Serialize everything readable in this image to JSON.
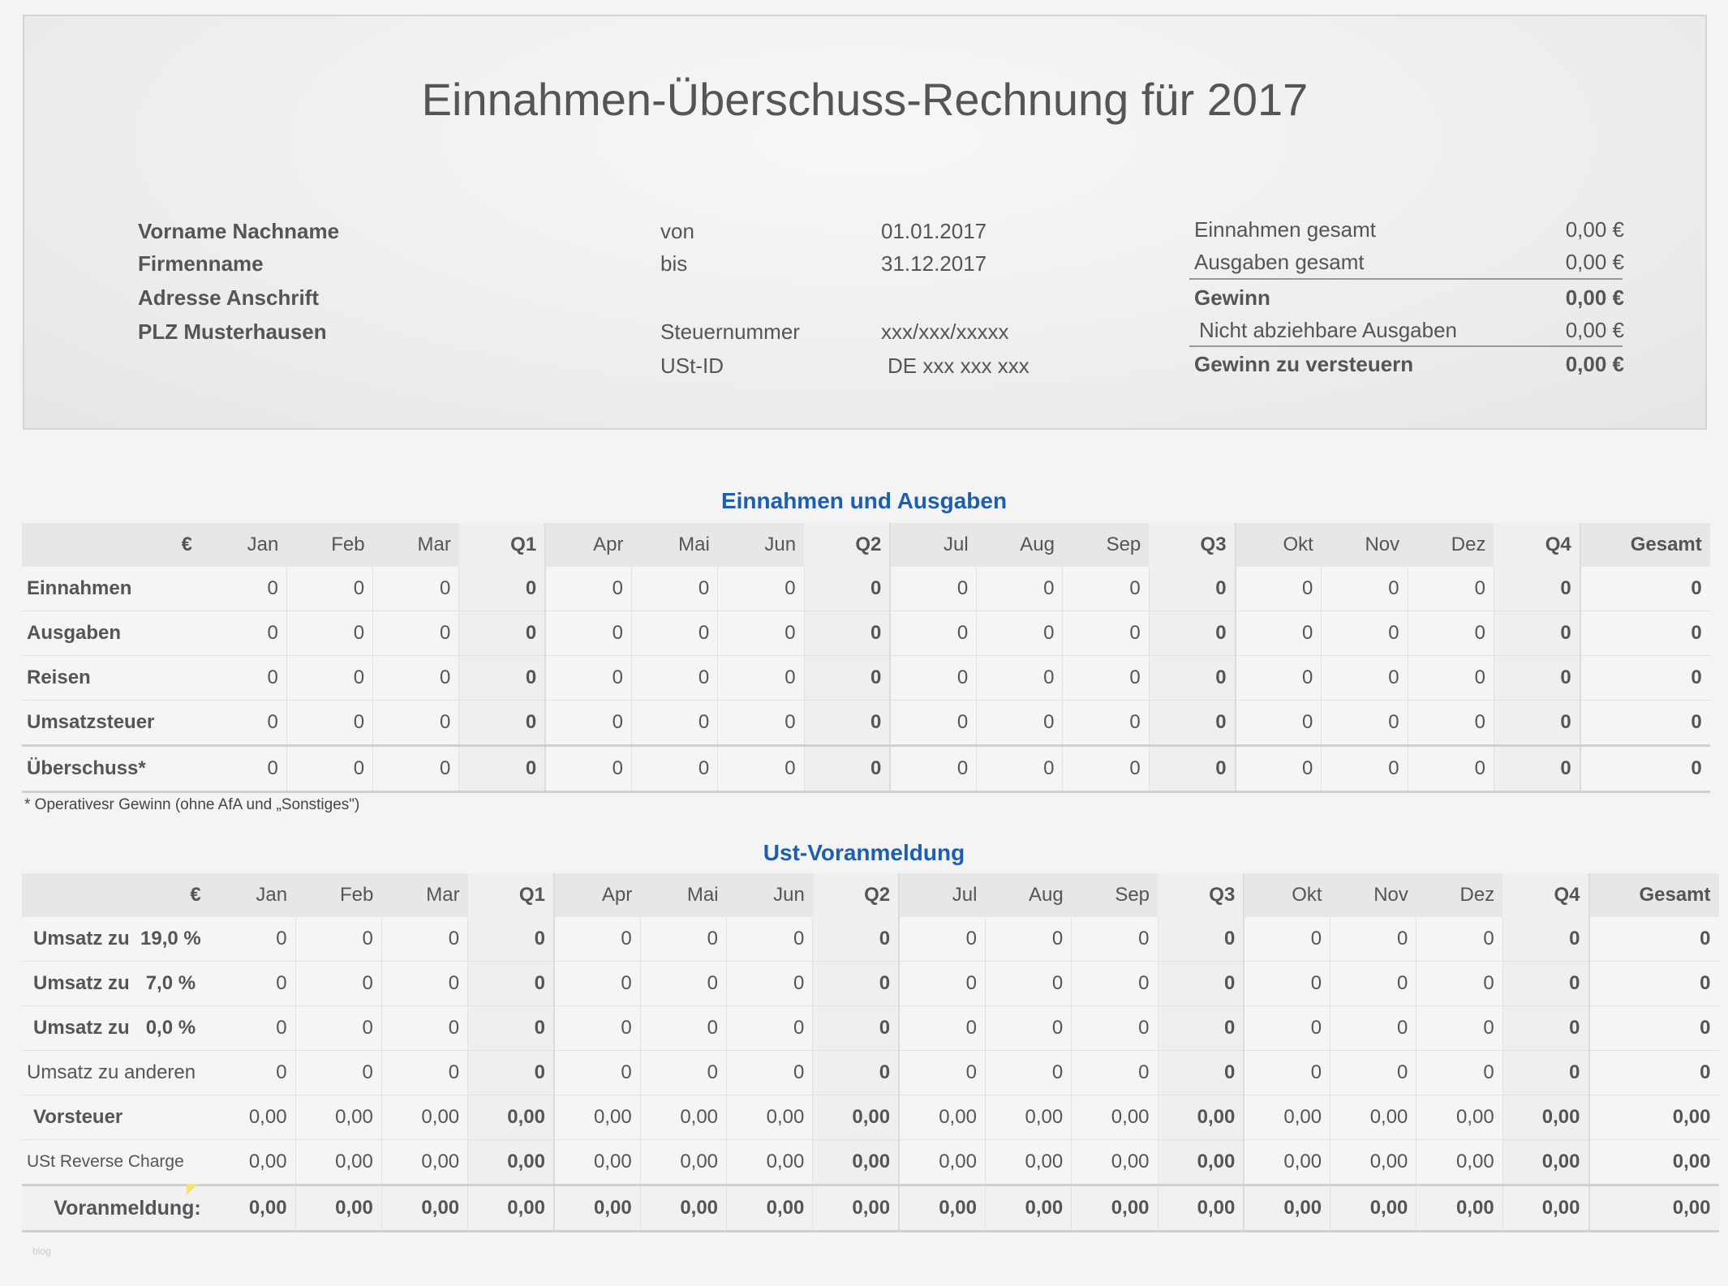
{
  "title": "Einnahmen-Überschuss-Rechnung für 2017",
  "info": {
    "name": "Vorname Nachname",
    "firma": "Firmenname",
    "adresse": "Adresse Anschrift",
    "plz": "PLZ Musterhausen",
    "von_label": "von",
    "von": "01.01.2017",
    "bis_label": "bis",
    "bis": "31.12.2017",
    "steuer_label": "Steuernummer",
    "steuer": "xxx/xxx/xxxxx",
    "ust_label": "USt-ID",
    "ust": "DE xxx xxx xxx",
    "summary": [
      {
        "label": "Einnahmen gesamt",
        "value": "0,00 €",
        "bold": false
      },
      {
        "label": "Ausgaben gesamt",
        "value": "0,00 €",
        "bold": false
      },
      {
        "label": "Gewinn",
        "value": "0,00 €",
        "bold": true
      },
      {
        "label": "Nicht abziehbare Ausgaben",
        "value": "0,00 €",
        "bold": false
      },
      {
        "label": "Gewinn zu versteuern",
        "value": "0,00 €",
        "bold": true
      }
    ]
  },
  "columns": [
    "€",
    "Jan",
    "Feb",
    "Mar",
    "Q1",
    "Apr",
    "Mai",
    "Jun",
    "Q2",
    "Jul",
    "Aug",
    "Sep",
    "Q3",
    "Okt",
    "Nov",
    "Dez",
    "Q4",
    "Gesamt"
  ],
  "table1": {
    "title": "Einnahmen und Ausgaben",
    "rows": [
      {
        "label": "Einnahmen",
        "bold": true,
        "values": [
          "0",
          "0",
          "0",
          "0",
          "0",
          "0",
          "0",
          "0",
          "0",
          "0",
          "0",
          "0",
          "0",
          "0",
          "0",
          "0",
          "0"
        ]
      },
      {
        "label": "Ausgaben",
        "bold": true,
        "values": [
          "0",
          "0",
          "0",
          "0",
          "0",
          "0",
          "0",
          "0",
          "0",
          "0",
          "0",
          "0",
          "0",
          "0",
          "0",
          "0",
          "0"
        ]
      },
      {
        "label": "Reisen",
        "bold": true,
        "values": [
          "0",
          "0",
          "0",
          "0",
          "0",
          "0",
          "0",
          "0",
          "0",
          "0",
          "0",
          "0",
          "0",
          "0",
          "0",
          "0",
          "0"
        ]
      },
      {
        "label": "Umsatzsteuer",
        "bold": true,
        "values": [
          "0",
          "0",
          "0",
          "0",
          "0",
          "0",
          "0",
          "0",
          "0",
          "0",
          "0",
          "0",
          "0",
          "0",
          "0",
          "0",
          "0"
        ]
      },
      {
        "label": "Überschuss*",
        "bold": true,
        "sum": true,
        "values": [
          "0",
          "0",
          "0",
          "0",
          "0",
          "0",
          "0",
          "0",
          "0",
          "0",
          "0",
          "0",
          "0",
          "0",
          "0",
          "0",
          "0"
        ]
      }
    ],
    "footnote": "* Operativesr Gewinn (ohne AfA und „Sonstiges\")"
  },
  "table2": {
    "title": "Ust-Voranmeldung",
    "rows": [
      {
        "label": "Umsatz zu  19,0 %",
        "bold": true,
        "values": [
          "0",
          "0",
          "0",
          "0",
          "0",
          "0",
          "0",
          "0",
          "0",
          "0",
          "0",
          "0",
          "0",
          "0",
          "0",
          "0",
          "0"
        ]
      },
      {
        "label": "Umsatz zu   7,0 %",
        "bold": true,
        "values": [
          "0",
          "0",
          "0",
          "0",
          "0",
          "0",
          "0",
          "0",
          "0",
          "0",
          "0",
          "0",
          "0",
          "0",
          "0",
          "0",
          "0"
        ]
      },
      {
        "label": "Umsatz zu   0,0 %",
        "bold": true,
        "values": [
          "0",
          "0",
          "0",
          "0",
          "0",
          "0",
          "0",
          "0",
          "0",
          "0",
          "0",
          "0",
          "0",
          "0",
          "0",
          "0",
          "0"
        ]
      },
      {
        "label": "Umsatz zu anderen",
        "bold": false,
        "values": [
          "0",
          "0",
          "0",
          "0",
          "0",
          "0",
          "0",
          "0",
          "0",
          "0",
          "0",
          "0",
          "0",
          "0",
          "0",
          "0",
          "0"
        ]
      },
      {
        "label": "Vorsteuer",
        "bold": true,
        "values": [
          "0,00",
          "0,00",
          "0,00",
          "0,00",
          "0,00",
          "0,00",
          "0,00",
          "0,00",
          "0,00",
          "0,00",
          "0,00",
          "0,00",
          "0,00",
          "0,00",
          "0,00",
          "0,00",
          "0,00"
        ]
      },
      {
        "label": "USt Reverse Charge",
        "bold": false,
        "small": true,
        "values": [
          "0,00",
          "0,00",
          "0,00",
          "0,00",
          "0,00",
          "0,00",
          "0,00",
          "0,00",
          "0,00",
          "0,00",
          "0,00",
          "0,00",
          "0,00",
          "0,00",
          "0,00",
          "0,00",
          "0,00"
        ]
      },
      {
        "label": "Voranmeldung:",
        "bold": true,
        "sum2": true,
        "values": [
          "0,00",
          "0,00",
          "0,00",
          "0,00",
          "0,00",
          "0,00",
          "0,00",
          "0,00",
          "0,00",
          "0,00",
          "0,00",
          "0,00",
          "0,00",
          "0,00",
          "0,00",
          "0,00",
          "0,00"
        ]
      }
    ]
  },
  "watermark": "blog"
}
